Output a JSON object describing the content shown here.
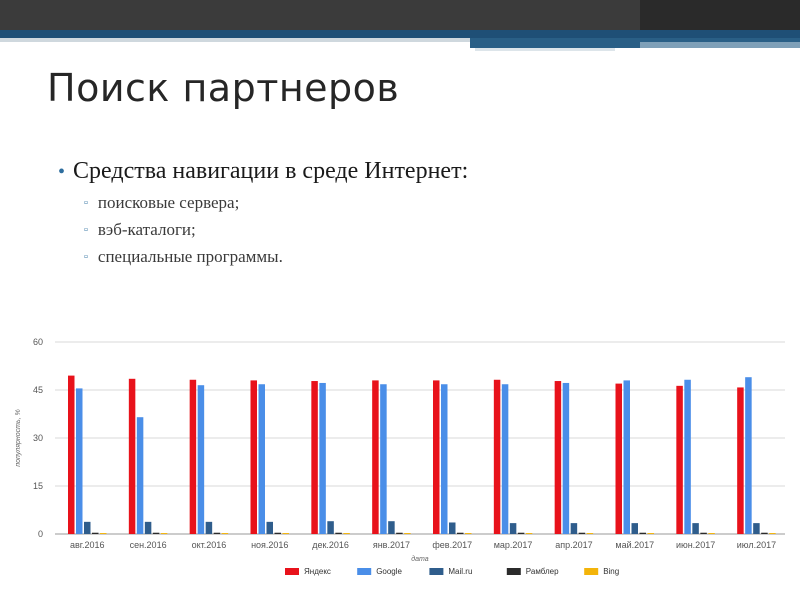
{
  "slide": {
    "title": "Поиск партнеров",
    "bullet": "Средства навигации в среде Интернет:",
    "subitems": [
      "поисковые сервера;",
      "вэб-каталоги;",
      "специальные программы."
    ]
  },
  "colors": {
    "topbar_dark": "#3a3a3a",
    "topbar_blue": "#1f4f76",
    "topbar_light": "#cfd8de",
    "bullet_accent": "#3a78a6"
  },
  "chart_data": {
    "type": "bar",
    "title": "",
    "xlabel": "дата",
    "ylabel": "популярность, %",
    "ylim": [
      0,
      60
    ],
    "yticks": [
      0,
      15,
      30,
      45,
      60
    ],
    "grid": true,
    "legend_position": "bottom",
    "categories": [
      "авг.2016",
      "сен.2016",
      "окт.2016",
      "ноя.2016",
      "дек.2016",
      "янв.2017",
      "фев.2017",
      "мар.2017",
      "апр.2017",
      "май.2017",
      "июн.2017",
      "июл.2017"
    ],
    "series": [
      {
        "name": "Яндекс",
        "color": "#e8121b",
        "values": [
          49.5,
          48.5,
          48.2,
          48.0,
          47.8,
          48.0,
          48.0,
          48.2,
          47.8,
          47.0,
          46.3,
          45.8
        ]
      },
      {
        "name": "Google",
        "color": "#4a8ee8",
        "values": [
          45.5,
          36.5,
          46.5,
          46.8,
          47.2,
          46.8,
          46.8,
          46.8,
          47.2,
          48.0,
          48.2,
          49.0
        ]
      },
      {
        "name": "Mail.ru",
        "color": "#2f5d8c",
        "values": [
          3.8,
          3.8,
          3.8,
          3.8,
          4.0,
          4.0,
          3.6,
          3.4,
          3.4,
          3.4,
          3.4,
          3.4
        ]
      },
      {
        "name": "Рамблер",
        "color": "#2b2b2b",
        "values": [
          0.4,
          0.4,
          0.4,
          0.4,
          0.4,
          0.4,
          0.4,
          0.4,
          0.4,
          0.4,
          0.4,
          0.4
        ]
      },
      {
        "name": "Bing",
        "color": "#f3b40a",
        "values": [
          0.3,
          0.3,
          0.3,
          0.3,
          0.3,
          0.3,
          0.3,
          0.3,
          0.3,
          0.3,
          0.3,
          0.3
        ]
      }
    ]
  }
}
